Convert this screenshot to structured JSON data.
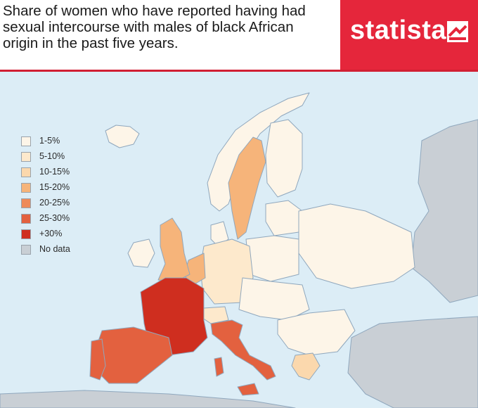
{
  "title_lines": [
    "Share of women who have reported having had",
    "sexual intercourse with males of black African",
    "origin in the past five years."
  ],
  "brand": {
    "name": "statista",
    "color": "#e5263b"
  },
  "colors": {
    "sea": "#dcedf6",
    "no_data": "#c9cfd5",
    "border": "#8fa7bd"
  },
  "legend": [
    {
      "label": "1-5%",
      "color": "#fdf5e8"
    },
    {
      "label": "5-10%",
      "color": "#fde9cc"
    },
    {
      "label": "10-15%",
      "color": "#fbd8ad"
    },
    {
      "label": "15-20%",
      "color": "#f6b47a"
    },
    {
      "label": "20-25%",
      "color": "#ee8a5a"
    },
    {
      "label": "25-30%",
      "color": "#e3613f"
    },
    {
      "label": "+30%",
      "color": "#cf2e1f"
    },
    {
      "label": "No data",
      "color": "#c9cfd5"
    }
  ]
}
